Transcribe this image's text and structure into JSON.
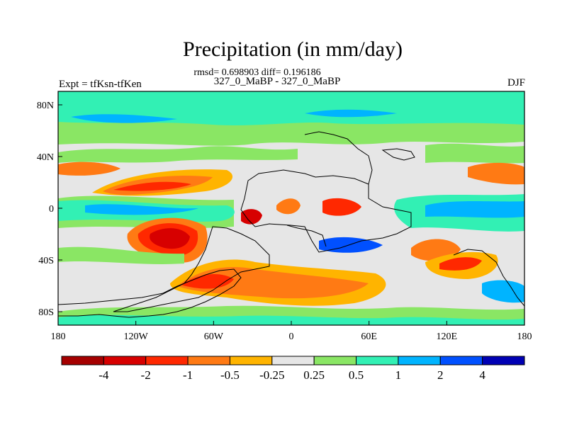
{
  "title": "Precipitation (in mm/day)",
  "stats": "rmsd= 0.698903 diff= 0.196186",
  "left_label": "Expt = tfKsn-tfKen",
  "center_label": "327_0_MaBP - 327_0_MaBP",
  "right_label": "DJF",
  "map": {
    "lon_ticks": [
      "180",
      "120W",
      "60W",
      "0",
      "60E",
      "120E",
      "180"
    ],
    "lat_ticks": [
      "80N",
      "40N",
      "0",
      "40S",
      "80S"
    ],
    "background_color": "#e6e6e6"
  },
  "colorbar": {
    "colors": [
      "#a50000",
      "#d70000",
      "#ff2800",
      "#ff7a14",
      "#ffb400",
      "#e6e6e6",
      "#8ae664",
      "#32f0b4",
      "#00b4ff",
      "#0050ff",
      "#0000b4"
    ],
    "labels": [
      "-4",
      "-2",
      "-1",
      "-0.5",
      "-0.25",
      "0.25",
      "0.5",
      "1",
      "2",
      "4"
    ]
  }
}
